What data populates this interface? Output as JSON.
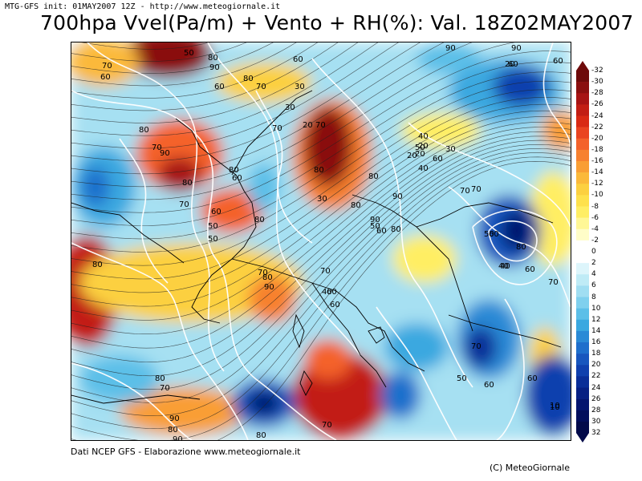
{
  "header": {
    "init_text": "MTG-GFS init: 01MAY2007 12Z - http://www.meteogiornale.it",
    "title": "700hpa Vvel(Pa/m) + Vento + RH(%): Val. 18Z02MAY2007"
  },
  "colorbar": {
    "labels": [
      "-32",
      "-30",
      "-28",
      "-26",
      "-24",
      "-22",
      "-20",
      "-18",
      "-16",
      "-14",
      "-12",
      "-10",
      "-8",
      "-6",
      "-4",
      "-2",
      "0",
      "2",
      "4",
      "6",
      "8",
      "10",
      "12",
      "14",
      "16",
      "18",
      "20",
      "22",
      "24",
      "26",
      "28",
      "30",
      "32"
    ],
    "colors": [
      "#6e0a0a",
      "#8a0f0f",
      "#a71414",
      "#c21e14",
      "#d92a14",
      "#ea4420",
      "#f4622b",
      "#f7812f",
      "#f99e34",
      "#fbb93a",
      "#fcd040",
      "#fee14c",
      "#ffee64",
      "#fff796",
      "#fffdc8",
      "#ffffff",
      "#ffffff",
      "#ddf5fb",
      "#bfebf6",
      "#a0def2",
      "#7fd0ee",
      "#5cbfe8",
      "#3aa8e0",
      "#2a8ad6",
      "#1f6fcc",
      "#1856be",
      "#1040ae",
      "#0a2e98",
      "#072083",
      "#04156f",
      "#020e5c",
      "#020a4a"
    ]
  },
  "contour_labels": [
    "50",
    "70",
    "60",
    "90",
    "60",
    "80",
    "70",
    "60",
    "30",
    "80",
    "90",
    "80",
    "70",
    "60",
    "50",
    "50",
    "60",
    "80",
    "80",
    "70",
    "30",
    "20",
    "70",
    "80",
    "90",
    "80",
    "60",
    "40",
    "60",
    "50",
    "40",
    "30",
    "70",
    "90",
    "20",
    "20",
    "20",
    "70",
    "90",
    "20",
    "60",
    "80",
    "70",
    "30",
    "80",
    "50",
    "60",
    "80",
    "90",
    "40",
    "60",
    "70",
    "80",
    "90",
    "80",
    "60",
    "40",
    "50",
    "40",
    "80",
    "60",
    "70",
    "50",
    "70",
    "60",
    "60",
    "70",
    "80",
    "90",
    "80",
    "90",
    "80",
    "70",
    "10",
    "80",
    "60",
    "70",
    "10"
  ],
  "footer": {
    "credit": "Dati NCEP GFS - Elaborazione www.meteogiornale.it",
    "copyright": "(C) MeteoGiornale"
  }
}
